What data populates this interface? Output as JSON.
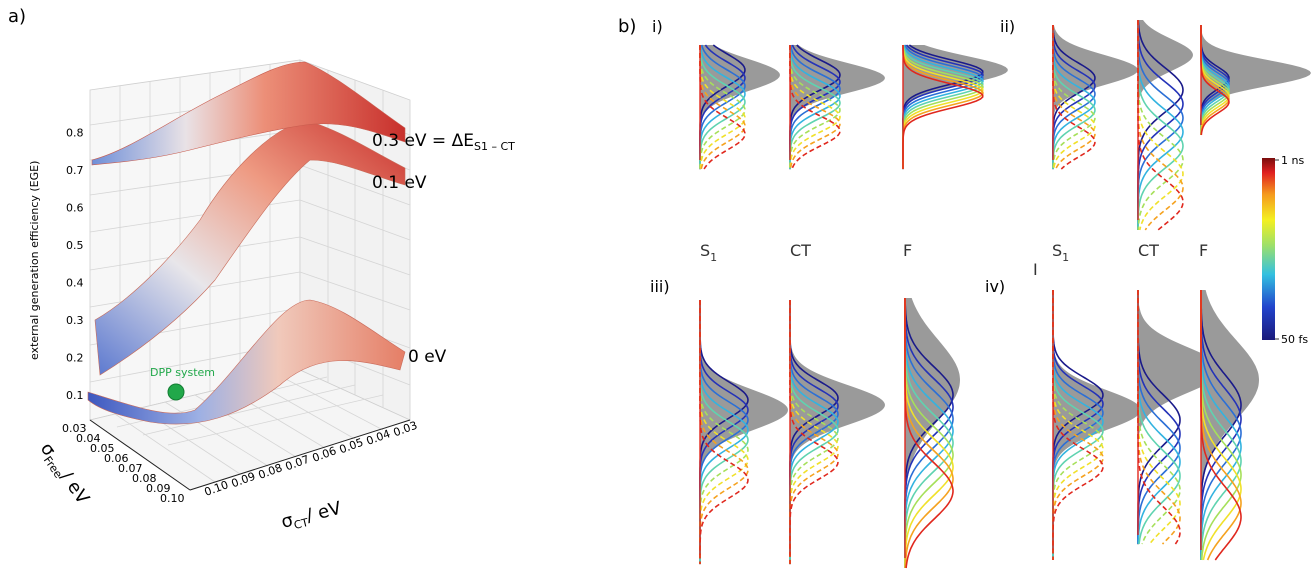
{
  "panel_a": {
    "label": "a)",
    "z_axis_label": "external generation efficiency (EGE)",
    "z_ticks": [
      "0.1",
      "0.2",
      "0.3",
      "0.4",
      "0.5",
      "0.6",
      "0.7",
      "0.8"
    ],
    "x_axis_symbol": "σ",
    "x_axis_subscript": "CT",
    "x_axis_unit": "/ eV",
    "x_ticks": [
      "0.10",
      "0.09",
      "0.08",
      "0.07",
      "0.06",
      "0.05",
      "0.04",
      "0.03"
    ],
    "y_axis_symbol": "σ",
    "y_axis_subscript": "Free",
    "y_axis_unit": "/ eV",
    "y_ticks": [
      "0.03",
      "0.04",
      "0.05",
      "0.06",
      "0.07",
      "0.08",
      "0.09",
      "0.10"
    ],
    "surface_labels": {
      "top_value": "0.3 eV = ",
      "top_symbol": "ΔE",
      "top_subscript": "S1 – CT",
      "middle": "0.1 eV",
      "bottom": "0 eV"
    },
    "marker_label": "DPP system",
    "colors": {
      "low": "#3b4cc0",
      "mid": "#f2f2f2",
      "high": "#c0282d",
      "marker": "#21a84a"
    }
  },
  "panel_b": {
    "label": "b)",
    "sub_labels": [
      "i)",
      "ii)",
      "iii)",
      "iv)"
    ],
    "column_labels": {
      "s1_symbol": "S",
      "s1_subscript": "1",
      "ct": "CT",
      "f": "F"
    },
    "stray_mark": "I",
    "colorbar": {
      "top_label": "1 ns",
      "bottom_label": "50 fs"
    }
  }
}
